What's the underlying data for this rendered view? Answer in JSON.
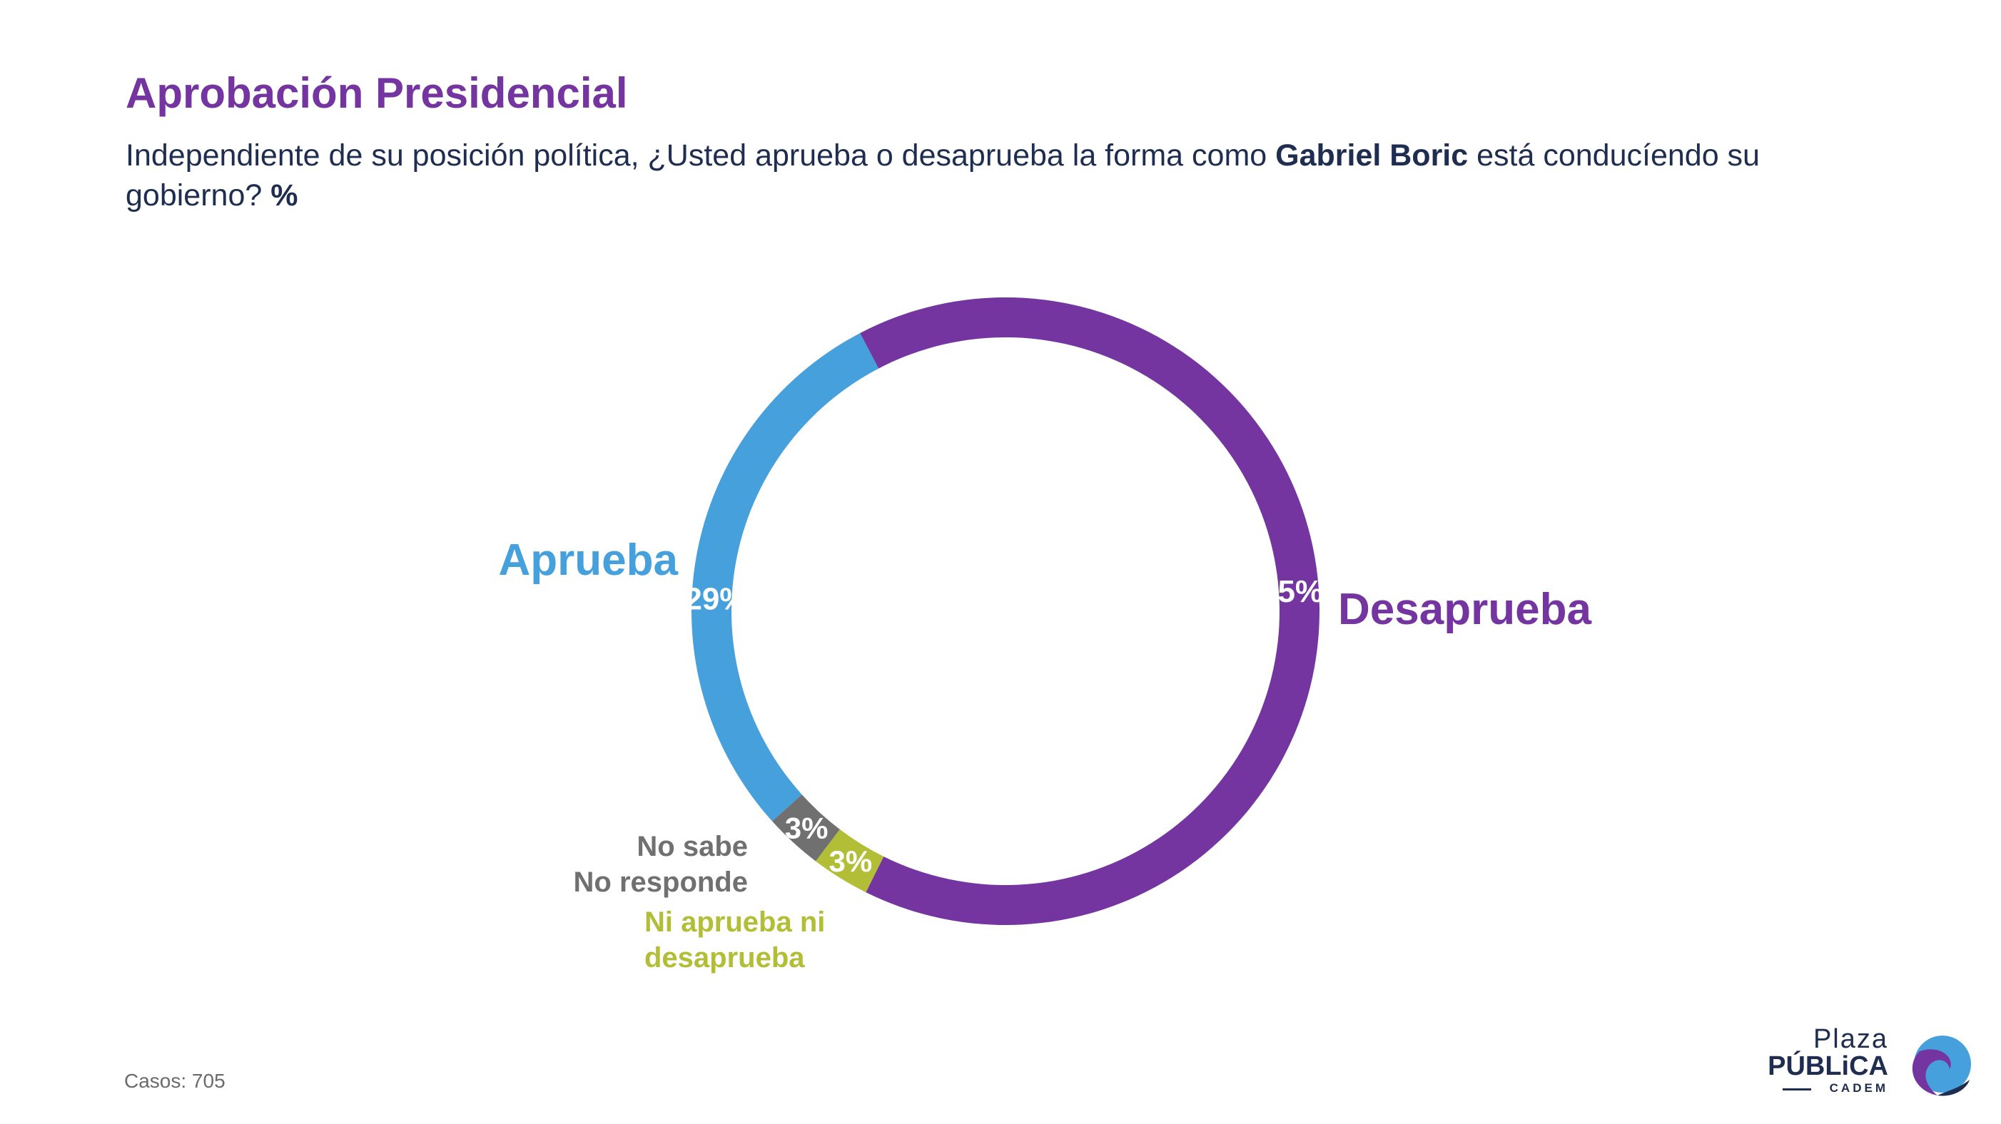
{
  "title": "Aprobación Presidencial",
  "subtitle": {
    "part1": "Independiente de su posición política, ¿Usted aprueba o desaprueba la forma como ",
    "bold_name": "Gabriel Boric",
    "part2": " está conducíendo su gobierno? ",
    "bold_unit": "%"
  },
  "footer": {
    "cases": "Casos: 705"
  },
  "logo": {
    "plaza": "Plaza",
    "publica": "PÚBLiCA",
    "cadem": "CADEM"
  },
  "colors": {
    "title": "#7535A0",
    "text": "#1F2E50",
    "desaprueba": "#7535A0",
    "aprueba": "#46A0DB",
    "no_sabe": "#707070",
    "ni_ni": "#B2BE35"
  },
  "chart_data": {
    "type": "pie",
    "donut": true,
    "slices": [
      {
        "label": "Desaprueba",
        "value": 65,
        "value_label": "65%",
        "color": "#7535A0"
      },
      {
        "label": "Ni aprueba ni desaprueba",
        "value": 3,
        "value_label": "3%",
        "color": "#B2BE35"
      },
      {
        "label": "No sabe No responde",
        "value": 3,
        "value_label": "3%",
        "color": "#707070"
      },
      {
        "label": "Aprueba",
        "value": 29,
        "value_label": "29%",
        "color": "#46A0DB"
      }
    ],
    "category_labels": {
      "desaprueba": "Desaprueba",
      "aprueba": "Aprueba",
      "no_sabe_line1": "No sabe",
      "no_sabe_line2": "No responde",
      "ni_ni_line1": "Ni aprueba ni",
      "ni_ni_line2": "desaprueba"
    }
  }
}
